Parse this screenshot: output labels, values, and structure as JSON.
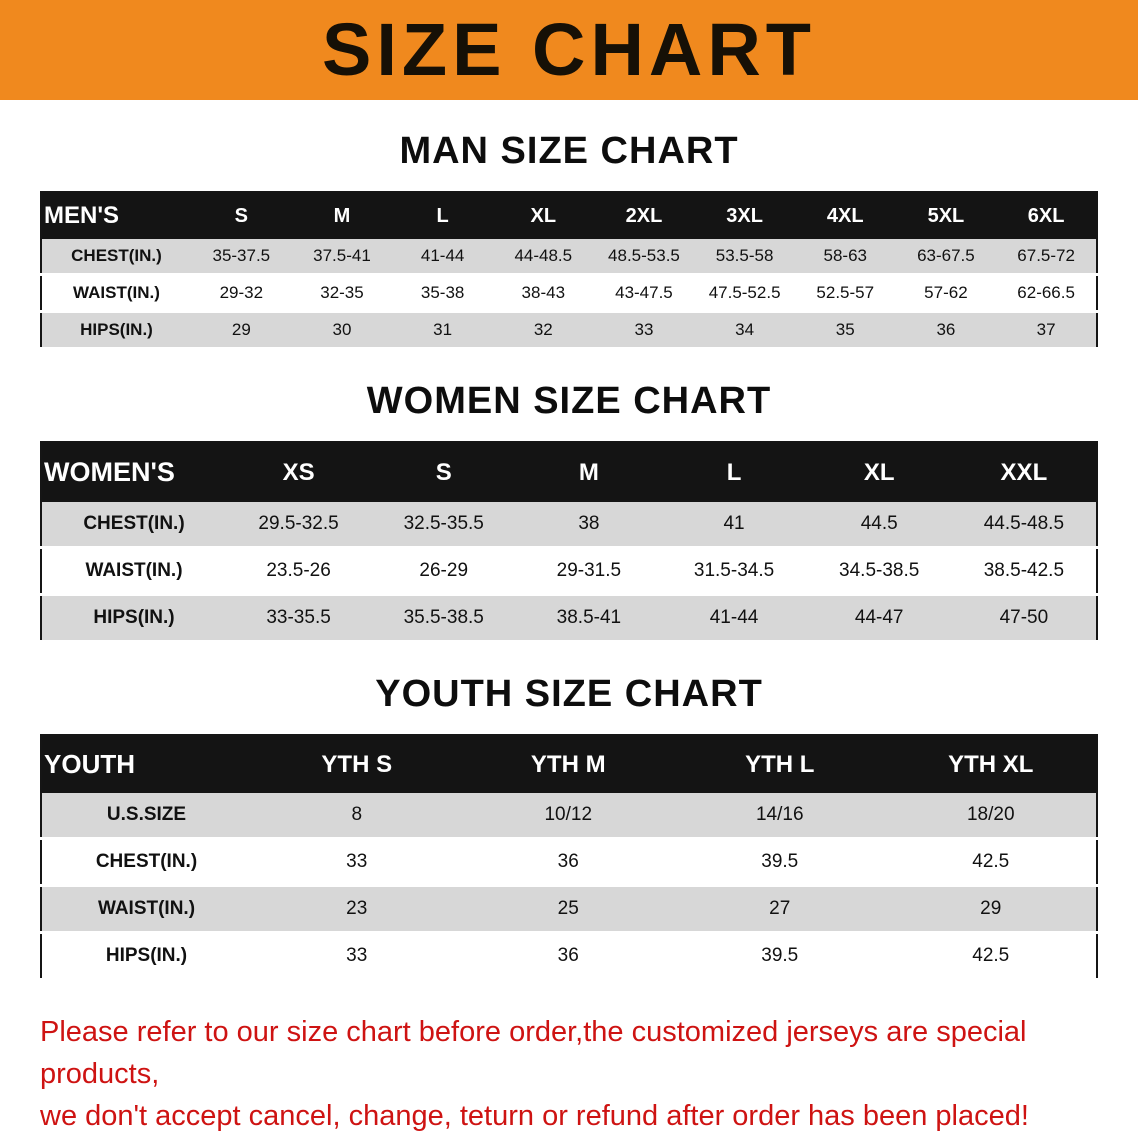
{
  "banner_title": "SIZE CHART",
  "colors": {
    "banner_orange": "#f0891e",
    "table_header_black": "#141414",
    "row_gray": "#d7d7d7",
    "note_red": "#ce1312"
  },
  "men": {
    "heading": "MAN SIZE CHART",
    "header": [
      "MEN'S",
      "S",
      "M",
      "L",
      "XL",
      "2XL",
      "3XL",
      "4XL",
      "5XL",
      "6XL"
    ],
    "rows": [
      [
        "CHEST(IN.)",
        "35-37.5",
        "37.5-41",
        "41-44",
        "44-48.5",
        "48.5-53.5",
        "53.5-58",
        "58-63",
        "63-67.5",
        "67.5-72"
      ],
      [
        "WAIST(IN.)",
        "29-32",
        "32-35",
        "35-38",
        "38-43",
        "43-47.5",
        "47.5-52.5",
        "52.5-57",
        "57-62",
        "62-66.5"
      ],
      [
        "HIPS(IN.)",
        "29",
        "30",
        "31",
        "32",
        "33",
        "34",
        "35",
        "36",
        "37"
      ]
    ]
  },
  "women": {
    "heading": "WOMEN SIZE CHART",
    "header": [
      "WOMEN'S",
      "XS",
      "S",
      "M",
      "L",
      "XL",
      "XXL"
    ],
    "rows": [
      [
        "CHEST(IN.)",
        "29.5-32.5",
        "32.5-35.5",
        "38",
        "41",
        "44.5",
        "44.5-48.5"
      ],
      [
        "WAIST(IN.)",
        "23.5-26",
        "26-29",
        "29-31.5",
        "31.5-34.5",
        "34.5-38.5",
        "38.5-42.5"
      ],
      [
        "HIPS(IN.)",
        "33-35.5",
        "35.5-38.5",
        "38.5-41",
        "41-44",
        "44-47",
        "47-50"
      ]
    ]
  },
  "youth": {
    "heading": "YOUTH SIZE CHART",
    "header": [
      "YOUTH",
      "YTH S",
      "YTH M",
      "YTH L",
      "YTH XL"
    ],
    "rows": [
      [
        "U.S.SIZE",
        "8",
        "10/12",
        "14/16",
        "18/20"
      ],
      [
        "CHEST(IN.)",
        "33",
        "36",
        "39.5",
        "42.5"
      ],
      [
        "WAIST(IN.)",
        "23",
        "25",
        "27",
        "29"
      ],
      [
        "HIPS(IN.)",
        "33",
        "36",
        "39.5",
        "42.5"
      ]
    ]
  },
  "note": {
    "line1": "Please refer to our size chart before order,the customized jerseys are special products,",
    "line2": "we don't accept cancel, change, teturn or refund after order has been placed!"
  }
}
